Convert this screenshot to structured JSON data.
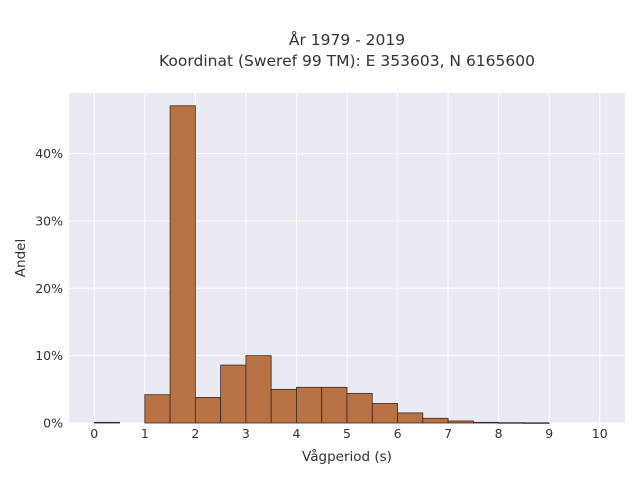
{
  "chart_data": {
    "type": "bar",
    "title": "År 1979 - 2019",
    "subtitle": "Koordinat (Sweref 99 TM): E 353603, N 6165600",
    "xlabel": "Vågperiod (s)",
    "ylabel": "Andel",
    "xlim": [
      -0.5,
      10.5
    ],
    "ylim": [
      0,
      49
    ],
    "xticks": [
      "0",
      "1",
      "2",
      "3",
      "4",
      "5",
      "6",
      "7",
      "8",
      "9",
      "10"
    ],
    "yticks": [
      {
        "value": 0,
        "label": "0%"
      },
      {
        "value": 10,
        "label": "10%"
      },
      {
        "value": 20,
        "label": "20%"
      },
      {
        "value": 30,
        "label": "30%"
      },
      {
        "value": 40,
        "label": "40%"
      }
    ],
    "bin_width": 0.5,
    "bins": [
      {
        "x": 0.0,
        "value": 0.1
      },
      {
        "x": 1.0,
        "value": 4.2
      },
      {
        "x": 1.5,
        "value": 47.1
      },
      {
        "x": 2.0,
        "value": 3.8
      },
      {
        "x": 2.5,
        "value": 8.6
      },
      {
        "x": 3.0,
        "value": 10.0
      },
      {
        "x": 3.5,
        "value": 5.0
      },
      {
        "x": 4.0,
        "value": 5.3
      },
      {
        "x": 4.5,
        "value": 5.3
      },
      {
        "x": 5.0,
        "value": 4.4
      },
      {
        "x": 5.5,
        "value": 2.9
      },
      {
        "x": 6.0,
        "value": 1.5
      },
      {
        "x": 6.5,
        "value": 0.7
      },
      {
        "x": 7.0,
        "value": 0.3
      },
      {
        "x": 7.5,
        "value": 0.1
      },
      {
        "x": 8.0,
        "value": 0.05
      },
      {
        "x": 8.5,
        "value": 0.03
      }
    ],
    "colors": {
      "bar_fill": "#b87246",
      "bar_stroke": "#3a2a20",
      "plot_background": "#eaeaf2",
      "grid": "#ffffff"
    },
    "grid": true
  }
}
